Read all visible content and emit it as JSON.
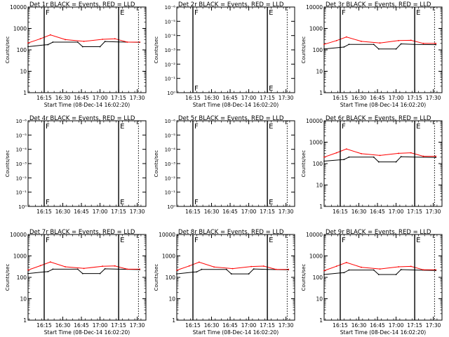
{
  "chart_data": [
    {
      "type": "line",
      "title": "Det 1r BLACK = Events, RED = LLD",
      "xlabel": "Start Time (08-Dec-14 16:02:20)",
      "ylabel": "Counts/sec",
      "yscale": "log",
      "ylim": [
        1,
        10000
      ],
      "yticks": [
        "1",
        "10",
        "100",
        "1000",
        "10000"
      ],
      "xticks": [
        "16:15",
        "16:30",
        "16:45",
        "17:00",
        "17:15",
        "17:30"
      ],
      "x_minutes_range": [
        0,
        95
      ],
      "markers": [
        {
          "x_min": 13,
          "style": "solid",
          "label": "F"
        },
        {
          "x_min": 73,
          "style": "solid",
          "label": "E"
        },
        {
          "x_min": 89,
          "style": "dotted",
          "label": ""
        }
      ],
      "series": [
        {
          "name": "Events",
          "color": "#000000",
          "points": [
            [
              0,
              140
            ],
            [
              13,
              170
            ],
            [
              16,
              175
            ],
            [
              20,
              230
            ],
            [
              40,
              230
            ],
            [
              44,
              140
            ],
            [
              58,
              140
            ],
            [
              62,
              245
            ],
            [
              73,
              235
            ],
            [
              90,
              225
            ]
          ]
        },
        {
          "name": "LLD",
          "color": "#ff0000",
          "points": [
            [
              0,
              210
            ],
            [
              10,
              330
            ],
            [
              18,
              500
            ],
            [
              30,
              300
            ],
            [
              45,
              250
            ],
            [
              60,
              310
            ],
            [
              70,
              330
            ],
            [
              80,
              230
            ],
            [
              90,
              230
            ]
          ]
        }
      ]
    },
    {
      "type": "line",
      "title": "Det 2r BLACK = Events, RED = LLD",
      "xlabel": "Start Time (08-Dec-14 16:02:20)",
      "ylabel": "Counts/sec",
      "yscale": "linear-empty",
      "yticks": [
        "10⁰",
        "10⁻¹",
        "10⁻²",
        "10⁻³",
        "10⁻⁴",
        "10⁻⁵",
        "10⁻⁶"
      ],
      "xticks": [
        "16:15",
        "16:30",
        "16:45",
        "17:00",
        "17:15",
        "17:30"
      ],
      "x_minutes_range": [
        0,
        95
      ],
      "markers": [
        {
          "x_min": 13,
          "style": "solid",
          "label": "F"
        },
        {
          "x_min": 73,
          "style": "solid",
          "label": "E"
        },
        {
          "x_min": 89,
          "style": "dotted",
          "label": ""
        }
      ],
      "series": []
    },
    {
      "type": "line",
      "title": "Det 3r BLACK = Events, RED = LLD",
      "xlabel": "Start Time (08-Dec-14 16:02:20)",
      "ylabel": "Counts/sec",
      "yscale": "log",
      "ylim": [
        1,
        10000
      ],
      "yticks": [
        "1",
        "10",
        "100",
        "1000",
        "10000"
      ],
      "xticks": [
        "16:15",
        "16:30",
        "16:45",
        "17:00",
        "17:15",
        "17:30"
      ],
      "x_minutes_range": [
        0,
        95
      ],
      "markers": [
        {
          "x_min": 13,
          "style": "solid",
          "label": "F"
        },
        {
          "x_min": 73,
          "style": "solid",
          "label": "E"
        },
        {
          "x_min": 89,
          "style": "dotted",
          "label": ""
        }
      ],
      "series": [
        {
          "name": "Events",
          "color": "#000000",
          "points": [
            [
              0,
              110
            ],
            [
              13,
              130
            ],
            [
              16,
              135
            ],
            [
              20,
              180
            ],
            [
              40,
              180
            ],
            [
              44,
              110
            ],
            [
              58,
              110
            ],
            [
              62,
              190
            ],
            [
              73,
              180
            ],
            [
              90,
              175
            ]
          ]
        },
        {
          "name": "LLD",
          "color": "#ff0000",
          "points": [
            [
              0,
              180
            ],
            [
              10,
              270
            ],
            [
              18,
              400
            ],
            [
              30,
              250
            ],
            [
              45,
              210
            ],
            [
              60,
              270
            ],
            [
              70,
              280
            ],
            [
              80,
              200
            ],
            [
              90,
              200
            ]
          ]
        }
      ]
    },
    {
      "type": "line",
      "title": "Det 4r BLACK = Events, RED = LLD",
      "xlabel": "",
      "ylabel": "Counts/sec",
      "yscale": "linear-empty",
      "yticks": [
        "10⁰",
        "10⁻¹",
        "10⁻²",
        "10⁻³",
        "10⁻⁴",
        "10⁻⁵",
        "10⁻⁶"
      ],
      "xticks": [
        "16:15",
        "16:30",
        "16:45",
        "17:00",
        "17:15",
        "17:30"
      ],
      "x_minutes_range": [
        0,
        95
      ],
      "markers": [
        {
          "x_min": 13,
          "style": "solid",
          "label": "F"
        },
        {
          "x_min": 73,
          "style": "solid",
          "label": "E"
        },
        {
          "x_min": 89,
          "style": "dotted",
          "label": ""
        }
      ],
      "series": []
    },
    {
      "type": "line",
      "title": "Det 5r BLACK = Events, RED = LLD",
      "xlabel": "",
      "ylabel": "Counts/sec",
      "yscale": "linear-empty",
      "yticks": [
        "10⁰",
        "10⁻¹",
        "10⁻²",
        "10⁻³",
        "10⁻⁴",
        "10⁻⁵",
        "10⁻⁶"
      ],
      "xticks": [
        "16:15",
        "16:30",
        "16:45",
        "17:00",
        "17:15",
        "17:30"
      ],
      "x_minutes_range": [
        0,
        95
      ],
      "markers": [
        {
          "x_min": 13,
          "style": "solid",
          "label": "F"
        },
        {
          "x_min": 73,
          "style": "solid",
          "label": "E"
        },
        {
          "x_min": 89,
          "style": "dotted",
          "label": ""
        }
      ],
      "series": []
    },
    {
      "type": "line",
      "title": "Det 6r BLACK = Events, RED = LLD",
      "xlabel": "",
      "ylabel": "Counts/sec",
      "yscale": "log",
      "ylim": [
        1,
        10000
      ],
      "yticks": [
        "1",
        "10",
        "100",
        "1000",
        "10000"
      ],
      "xticks": [
        "16:15",
        "16:30",
        "16:45",
        "17:00",
        "17:15",
        "17:30"
      ],
      "x_minutes_range": [
        0,
        95
      ],
      "markers": [
        {
          "x_min": 13,
          "style": "solid",
          "label": "F"
        },
        {
          "x_min": 73,
          "style": "solid",
          "label": "E"
        },
        {
          "x_min": 89,
          "style": "dotted",
          "label": ""
        }
      ],
      "series": [
        {
          "name": "Events",
          "color": "#000000",
          "points": [
            [
              0,
              130
            ],
            [
              13,
              150
            ],
            [
              16,
              155
            ],
            [
              20,
              200
            ],
            [
              40,
              200
            ],
            [
              44,
              120
            ],
            [
              58,
              120
            ],
            [
              62,
              210
            ],
            [
              73,
              200
            ],
            [
              90,
              195
            ]
          ]
        },
        {
          "name": "LLD",
          "color": "#ff0000",
          "points": [
            [
              0,
              200
            ],
            [
              10,
              320
            ],
            [
              18,
              480
            ],
            [
              30,
              290
            ],
            [
              45,
              240
            ],
            [
              60,
              300
            ],
            [
              70,
              320
            ],
            [
              80,
              220
            ],
            [
              90,
              220
            ]
          ]
        }
      ]
    },
    {
      "type": "line",
      "title": "Det 7r BLACK = Events, RED = LLD",
      "xlabel": "Start Time (08-Dec-14 16:02:20)",
      "ylabel": "Counts/sec",
      "yscale": "log",
      "ylim": [
        1,
        10000
      ],
      "yticks": [
        "1",
        "10",
        "100",
        "1000",
        "10000"
      ],
      "xticks": [
        "16:15",
        "16:30",
        "16:45",
        "17:00",
        "17:15",
        "17:30"
      ],
      "x_minutes_range": [
        0,
        95
      ],
      "markers": [
        {
          "x_min": 13,
          "style": "solid",
          "label": "F"
        },
        {
          "x_min": 73,
          "style": "solid",
          "label": "E"
        },
        {
          "x_min": 89,
          "style": "dotted",
          "label": ""
        }
      ],
      "series": [
        {
          "name": "Events",
          "color": "#000000",
          "points": [
            [
              0,
              150
            ],
            [
              13,
              180
            ],
            [
              16,
              185
            ],
            [
              20,
              240
            ],
            [
              40,
              240
            ],
            [
              44,
              150
            ],
            [
              58,
              150
            ],
            [
              62,
              250
            ],
            [
              73,
              240
            ],
            [
              90,
              230
            ]
          ]
        },
        {
          "name": "LLD",
          "color": "#ff0000",
          "points": [
            [
              0,
              220
            ],
            [
              10,
              350
            ],
            [
              18,
              520
            ],
            [
              30,
              310
            ],
            [
              45,
              260
            ],
            [
              60,
              330
            ],
            [
              70,
              340
            ],
            [
              80,
              240
            ],
            [
              90,
              240
            ]
          ]
        }
      ]
    },
    {
      "type": "line",
      "title": "Det 8r BLACK = Events, RED = LLD",
      "xlabel": "Start Time (08-Dec-14 16:02:20)",
      "ylabel": "Counts/sec",
      "yscale": "log",
      "ylim": [
        1,
        10000
      ],
      "yticks": [
        "1",
        "10",
        "100",
        "1000",
        "10000"
      ],
      "xticks": [
        "16:15",
        "16:30",
        "16:45",
        "17:00",
        "17:15",
        "17:30"
      ],
      "x_minutes_range": [
        0,
        95
      ],
      "markers": [
        {
          "x_min": 13,
          "style": "solid",
          "label": "F"
        },
        {
          "x_min": 73,
          "style": "solid",
          "label": "E"
        },
        {
          "x_min": 89,
          "style": "dotted",
          "label": ""
        }
      ],
      "series": [
        {
          "name": "Events",
          "color": "#000000",
          "points": [
            [
              0,
              145
            ],
            [
              13,
              175
            ],
            [
              16,
              180
            ],
            [
              20,
              235
            ],
            [
              40,
              235
            ],
            [
              44,
              145
            ],
            [
              58,
              145
            ],
            [
              62,
              245
            ],
            [
              73,
              235
            ],
            [
              90,
              225
            ]
          ]
        },
        {
          "name": "LLD",
          "color": "#ff0000",
          "points": [
            [
              0,
              215
            ],
            [
              10,
              340
            ],
            [
              18,
              510
            ],
            [
              30,
              305
            ],
            [
              45,
              255
            ],
            [
              60,
              320
            ],
            [
              70,
              335
            ],
            [
              80,
              235
            ],
            [
              90,
              235
            ]
          ]
        }
      ]
    },
    {
      "type": "line",
      "title": "Det 9r BLACK = Events, RED = LLD",
      "xlabel": "Start Time (08-Dec-14 16:02:20)",
      "ylabel": "Counts/sec",
      "yscale": "log",
      "ylim": [
        1,
        10000
      ],
      "yticks": [
        "1",
        "10",
        "100",
        "1000",
        "10000"
      ],
      "xticks": [
        "16:15",
        "16:30",
        "16:45",
        "17:00",
        "17:15",
        "17:30"
      ],
      "x_minutes_range": [
        0,
        95
      ],
      "markers": [
        {
          "x_min": 13,
          "style": "solid",
          "label": "F"
        },
        {
          "x_min": 73,
          "style": "solid",
          "label": "E"
        },
        {
          "x_min": 89,
          "style": "dotted",
          "label": ""
        }
      ],
      "series": [
        {
          "name": "Events",
          "color": "#000000",
          "points": [
            [
              0,
              135
            ],
            [
              13,
              160
            ],
            [
              16,
              165
            ],
            [
              20,
              220
            ],
            [
              40,
              220
            ],
            [
              44,
              135
            ],
            [
              58,
              135
            ],
            [
              62,
              230
            ],
            [
              73,
              220
            ],
            [
              90,
              210
            ]
          ]
        },
        {
          "name": "LLD",
          "color": "#ff0000",
          "points": [
            [
              0,
              205
            ],
            [
              10,
              330
            ],
            [
              18,
              490
            ],
            [
              30,
              295
            ],
            [
              45,
              245
            ],
            [
              60,
              310
            ],
            [
              70,
              325
            ],
            [
              80,
              225
            ],
            [
              90,
              225
            ]
          ]
        }
      ]
    }
  ]
}
